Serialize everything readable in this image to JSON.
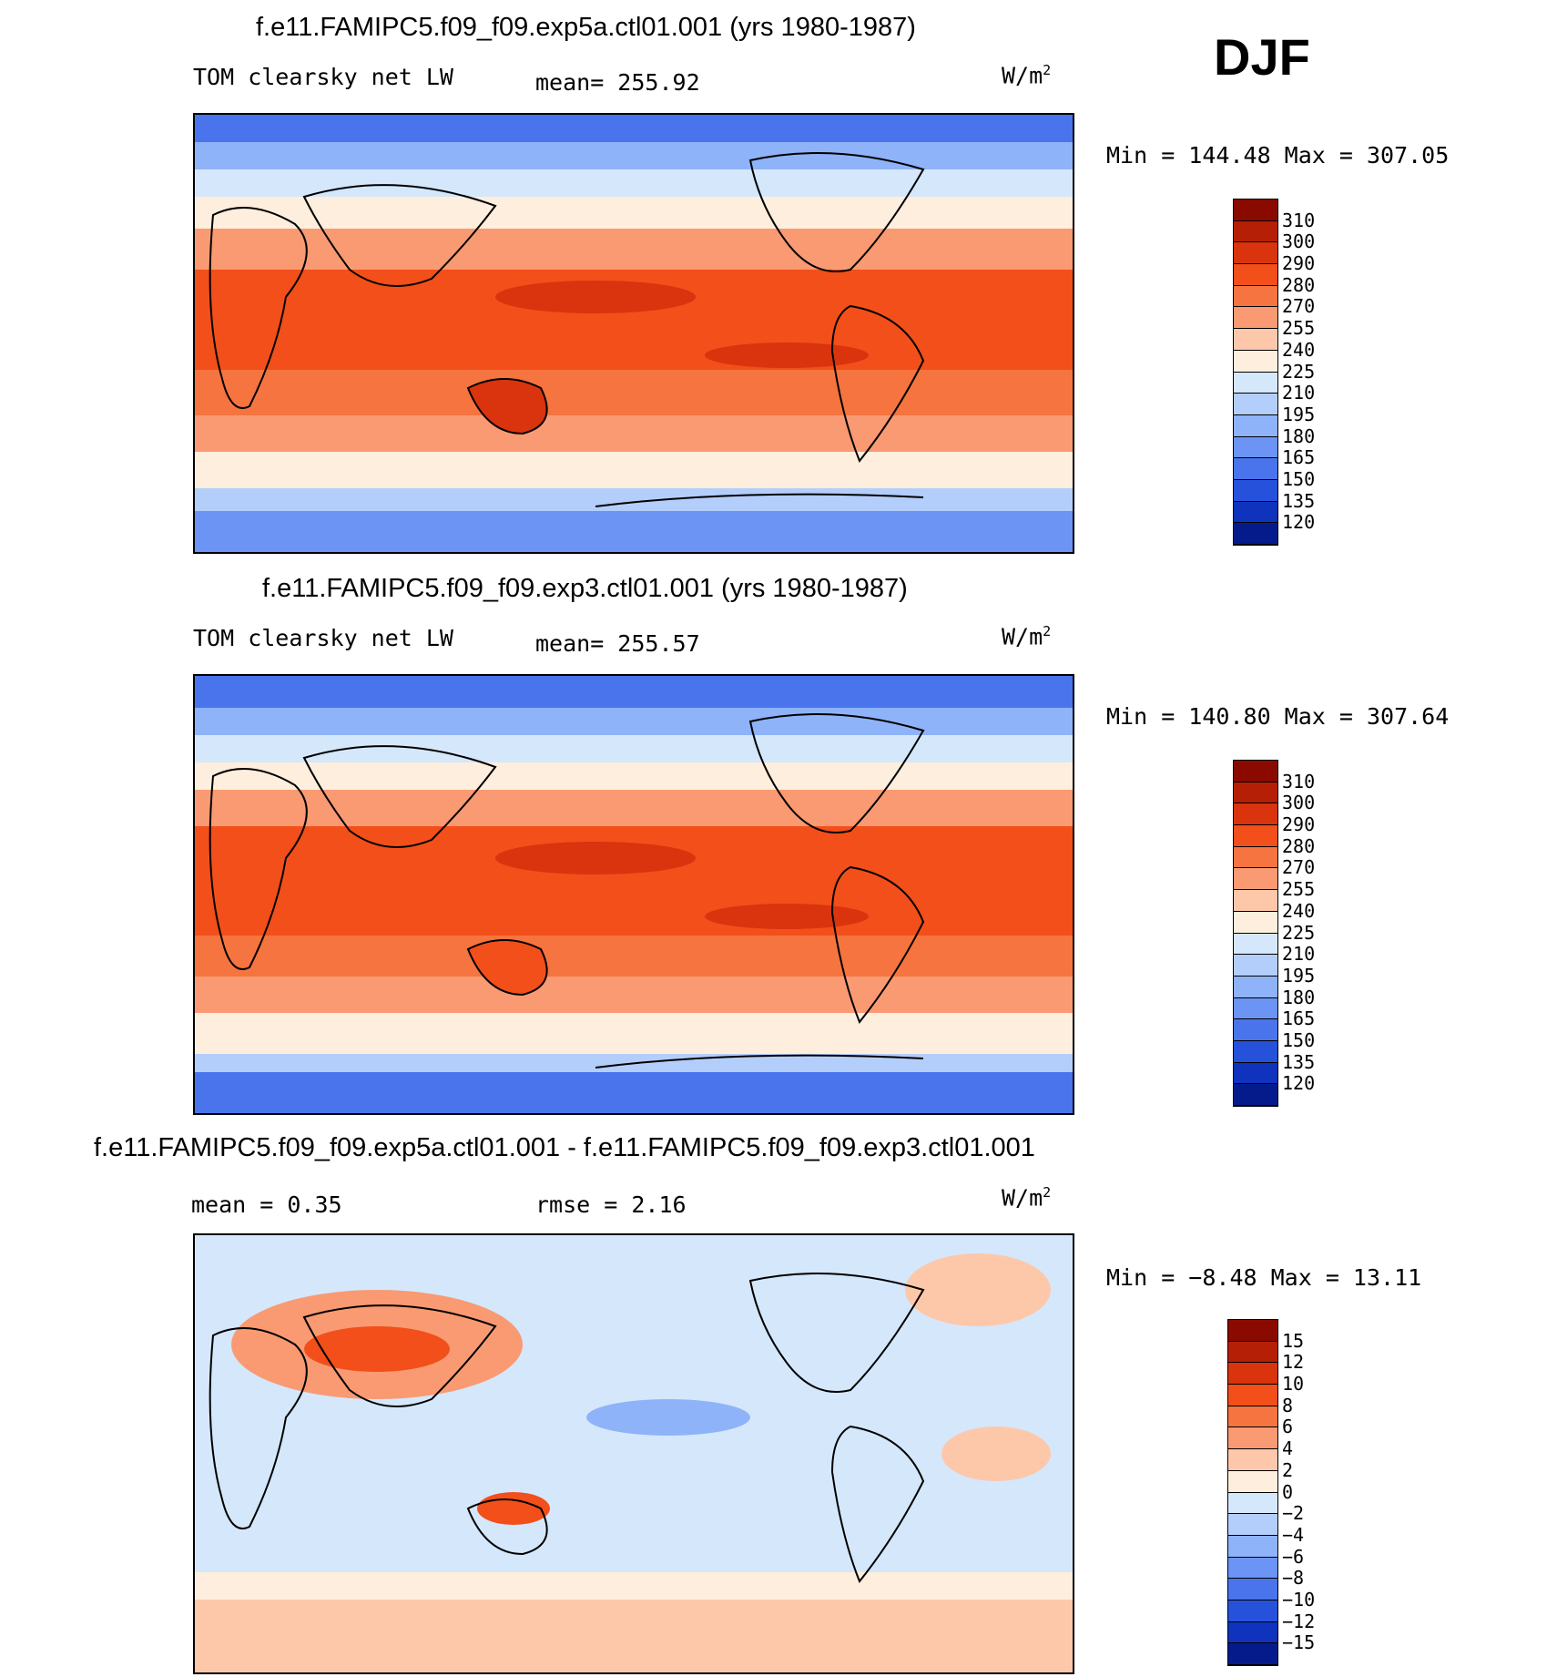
{
  "season": "DJF",
  "panels": [
    {
      "title": "f.e11.FAMIPC5.f09_f09.exp5a.ctl01.001 (yrs 1980-1987)",
      "left_label": "TOM clearsky net LW",
      "center_label": "mean= 255.92",
      "units_base": "W/m",
      "units_exp": "2",
      "minmax": "Min = 144.48 Max = 307.05",
      "colorbar_levels": [
        "310",
        "300",
        "290",
        "280",
        "270",
        "255",
        "240",
        "225",
        "210",
        "195",
        "180",
        "165",
        "150",
        "135",
        "120"
      ],
      "colorbar_colors": [
        "#8b0a00",
        "#b51f06",
        "#d9340d",
        "#f24f1a",
        "#f5743f",
        "#f99a73",
        "#fdc8aa",
        "#feeedd",
        "#d5e7fb",
        "#b3cefa",
        "#8eb3f9",
        "#6b94f4",
        "#4974ec",
        "#2652db",
        "#0f33bd",
        "#051b8c"
      ]
    },
    {
      "title": "f.e11.FAMIPC5.f09_f09.exp3.ctl01.001 (yrs 1980-1987)",
      "left_label": "TOM clearsky net LW",
      "center_label": "mean= 255.57",
      "units_base": "W/m",
      "units_exp": "2",
      "minmax": "Min = 140.80 Max = 307.64",
      "colorbar_levels": [
        "310",
        "300",
        "290",
        "280",
        "270",
        "255",
        "240",
        "225",
        "210",
        "195",
        "180",
        "165",
        "150",
        "135",
        "120"
      ],
      "colorbar_colors": [
        "#8b0a00",
        "#b51f06",
        "#d9340d",
        "#f24f1a",
        "#f5743f",
        "#f99a73",
        "#fdc8aa",
        "#feeedd",
        "#d5e7fb",
        "#b3cefa",
        "#8eb3f9",
        "#6b94f4",
        "#4974ec",
        "#2652db",
        "#0f33bd",
        "#051b8c"
      ]
    },
    {
      "title": "f.e11.FAMIPC5.f09_f09.exp5a.ctl01.001 - f.e11.FAMIPC5.f09_f09.exp3.ctl01.001",
      "left_label": "mean =    0.35",
      "center_label": "rmse =    2.16",
      "units_base": "W/m",
      "units_exp": "2",
      "minmax": "Min =  −8.48 Max =  13.11",
      "colorbar_levels": [
        "15",
        "12",
        "10",
        "8",
        "6",
        "4",
        "2",
        "0",
        "−2",
        "−4",
        "−6",
        "−8",
        "−10",
        "−12",
        "−15"
      ],
      "colorbar_colors": [
        "#8b0a00",
        "#b51f06",
        "#d9340d",
        "#f24f1a",
        "#f5743f",
        "#f99a73",
        "#fdc8aa",
        "#feeedd",
        "#d5e7fb",
        "#b3cefa",
        "#8eb3f9",
        "#6b94f4",
        "#4974ec",
        "#2652db",
        "#0f33bd",
        "#051b8c"
      ]
    }
  ]
}
